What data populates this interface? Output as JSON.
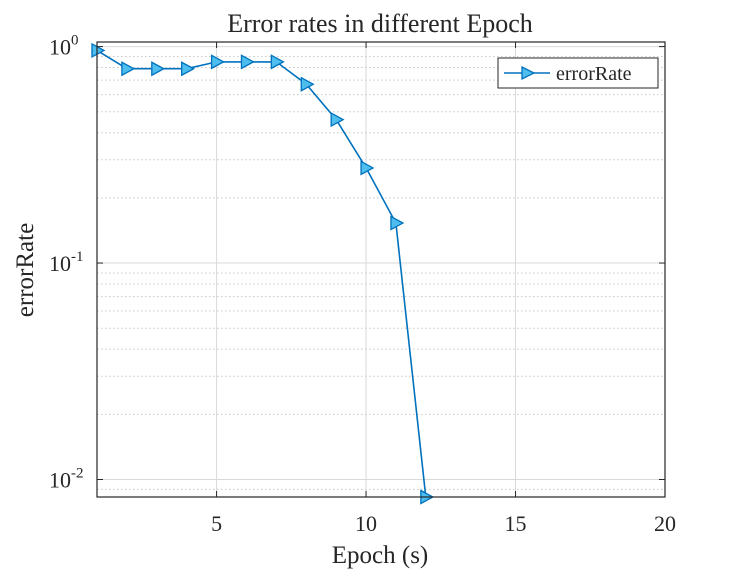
{
  "chart_data": {
    "type": "line",
    "title": "Error rates in different Epoch",
    "xlabel": "Epoch (s)",
    "ylabel": "errorRate",
    "xlim": [
      1,
      20
    ],
    "ylim": [
      0.0083,
      1.05
    ],
    "yscale": "log",
    "grid": true,
    "minor_grid_y": true,
    "legend_position": "top-right",
    "x_ticks": [
      5,
      10,
      15,
      20
    ],
    "x_tick_labels": [
      "5",
      "10",
      "15",
      "20"
    ],
    "y_ticks": [
      0.01,
      0.1,
      1
    ],
    "y_tick_labels": [
      {
        "base": "10",
        "exp": "-2"
      },
      {
        "base": "10",
        "exp": "-1"
      },
      {
        "base": "10",
        "exp": "0"
      }
    ],
    "colors": {
      "series": "#0072BD",
      "marker_fill": "#4DBEEE",
      "grid": "#d9d9d9",
      "axis": "#262626"
    },
    "marker": "triangle-right",
    "series": [
      {
        "name": "errorRate",
        "x": [
          1,
          2,
          3,
          4,
          5,
          6,
          7,
          8,
          9,
          10,
          11,
          12
        ],
        "y": [
          0.96,
          0.79,
          0.79,
          0.79,
          0.85,
          0.85,
          0.85,
          0.67,
          0.46,
          0.275,
          0.153,
          0.0083
        ]
      }
    ]
  }
}
